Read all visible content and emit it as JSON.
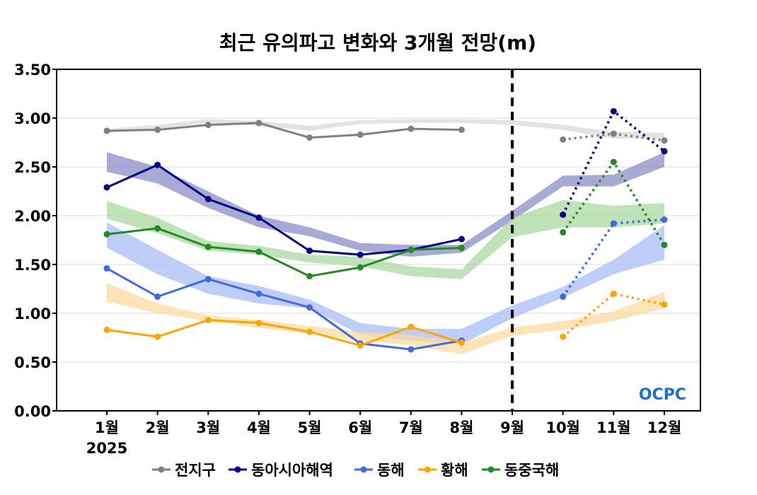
{
  "chart_data": {
    "type": "line",
    "title": "최근 유의파고 변화와 3개월 전망(m)",
    "categories": [
      "1월",
      "2월",
      "3월",
      "4월",
      "5월",
      "6월",
      "7월",
      "8월",
      "9월",
      "10월",
      "11월",
      "12월"
    ],
    "year_label": "2025",
    "ylim": [
      0,
      3.5
    ],
    "yticks": [
      "0.00",
      "0.50",
      "1.00",
      "1.50",
      "2.00",
      "2.50",
      "3.00",
      "3.50"
    ],
    "grid": true,
    "legend_position": "bottom",
    "forecast_divider_at": "9월",
    "series": [
      {
        "name": "전지구",
        "color": "#808080",
        "band_color": "#d9d9d9",
        "observed": [
          2.87,
          2.88,
          2.93,
          2.95,
          2.8,
          2.83,
          2.89,
          2.88
        ],
        "forecast": [
          2.78,
          2.84,
          2.77
        ],
        "band_low": [
          2.85,
          2.89,
          2.95,
          2.92,
          2.87,
          2.94,
          2.95,
          2.95,
          2.93,
          2.88,
          2.79,
          2.79
        ],
        "band_high": [
          2.89,
          2.93,
          2.99,
          2.97,
          2.92,
          2.98,
          2.99,
          2.99,
          2.98,
          2.93,
          2.86,
          2.85
        ]
      },
      {
        "name": "동아시아해역",
        "color": "#000080",
        "band_color": "#8c8cc7",
        "observed": [
          2.29,
          2.52,
          2.17,
          1.98,
          1.64,
          1.6,
          1.65,
          1.76
        ],
        "forecast": [
          2.01,
          3.07,
          2.66
        ],
        "band_low": [
          2.45,
          2.33,
          2.08,
          1.88,
          1.79,
          1.64,
          1.58,
          1.62,
          1.95,
          2.3,
          2.3,
          2.5
        ],
        "band_high": [
          2.65,
          2.5,
          2.25,
          2.0,
          1.88,
          1.72,
          1.7,
          1.7,
          2.05,
          2.41,
          2.42,
          2.65
        ]
      },
      {
        "name": "동해",
        "color": "#4169e1",
        "band_color": "#aabdf5",
        "observed": [
          1.46,
          1.17,
          1.35,
          1.2,
          1.06,
          0.69,
          0.63,
          0.72
        ],
        "forecast": [
          1.17,
          1.92,
          1.96
        ],
        "band_low": [
          1.67,
          1.4,
          1.2,
          1.1,
          1.05,
          0.78,
          0.72,
          0.68,
          0.95,
          1.16,
          1.4,
          1.55
        ],
        "band_high": [
          1.93,
          1.65,
          1.38,
          1.28,
          1.14,
          0.9,
          0.84,
          0.84,
          1.08,
          1.27,
          1.55,
          1.9
        ]
      },
      {
        "name": "황해",
        "color": "#ffa500",
        "band_color": "#fbdba0",
        "observed": [
          0.83,
          0.76,
          0.93,
          0.9,
          0.81,
          0.67,
          0.86,
          0.7
        ],
        "forecast": [
          0.76,
          1.2,
          1.09
        ],
        "band_low": [
          1.12,
          1.0,
          0.92,
          0.85,
          0.79,
          0.72,
          0.67,
          0.58,
          0.77,
          0.83,
          0.92,
          1.05
        ],
        "band_high": [
          1.31,
          1.1,
          0.98,
          0.93,
          0.87,
          0.81,
          0.78,
          0.7,
          0.85,
          0.92,
          1.02,
          1.22
        ]
      },
      {
        "name": "동중국해",
        "color": "#228b22",
        "band_color": "#a9d8a0",
        "observed": [
          1.81,
          1.87,
          1.68,
          1.63,
          1.38,
          1.47,
          1.65,
          1.67
        ],
        "forecast": [
          1.83,
          2.55,
          1.7
        ],
        "band_low": [
          1.97,
          1.82,
          1.64,
          1.6,
          1.52,
          1.48,
          1.38,
          1.35,
          1.78,
          1.88,
          1.88,
          1.92
        ],
        "band_high": [
          2.15,
          1.98,
          1.74,
          1.69,
          1.6,
          1.58,
          1.48,
          1.45,
          1.98,
          2.16,
          2.1,
          2.13
        ]
      }
    ]
  },
  "logo": {
    "text": "OCPC"
  }
}
